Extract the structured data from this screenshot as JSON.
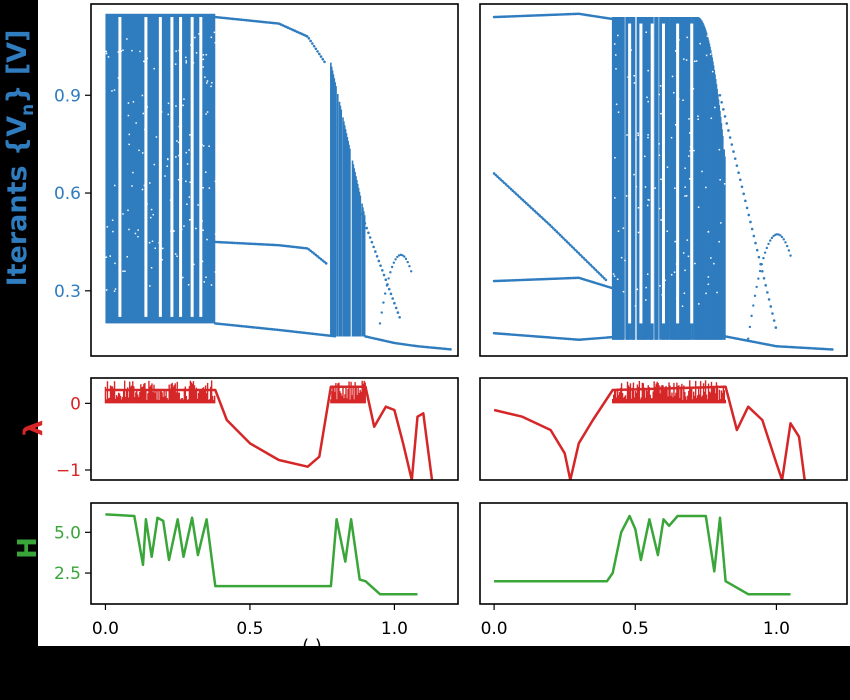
{
  "figure": {
    "colors": {
      "iterants": "#2f7cbf",
      "lyapunov": "#d62728",
      "entropy": "#3aa63a",
      "frame": "#000000",
      "panel_bg": "#ffffff",
      "page_bg": "#000000"
    },
    "ylabels": {
      "iterants_prefix": "Iterants {V",
      "iterants_sub": "n",
      "iterants_suffix": "} [V]",
      "lyapunov": "λ",
      "entropy": "H"
    },
    "xlabel_fragment": "(.)"
  },
  "chart_data": [
    {
      "id": "bifurcation-left",
      "type": "scatter",
      "series": [
        {
          "values": "bifurcation iterates"
        }
      ],
      "xlim": [
        -0.05,
        1.22
      ],
      "ylim": [
        0.1,
        1.18
      ],
      "yticks": [
        0.3,
        0.6,
        0.9
      ],
      "ytick_labels": [
        "0.3",
        "0.6",
        "0.9"
      ],
      "chaos_band": [
        0.0,
        0.38
      ],
      "chaos_band_2": [
        0.78,
        0.9
      ],
      "windows": [
        0.05,
        0.14,
        0.19,
        0.23,
        0.26,
        0.3,
        0.33
      ],
      "branch_upper": [
        [
          0.38,
          1.14
        ],
        [
          0.6,
          1.12
        ],
        [
          0.7,
          1.08
        ],
        [
          0.76,
          1.0
        ]
      ],
      "branch_mid": [
        [
          0.38,
          0.45
        ],
        [
          0.6,
          0.44
        ],
        [
          0.7,
          0.43
        ],
        [
          0.77,
          0.38
        ]
      ],
      "branch_low": [
        [
          0.0,
          0.21
        ],
        [
          0.38,
          0.2
        ],
        [
          0.6,
          0.18
        ],
        [
          0.8,
          0.16
        ]
      ],
      "tail": [
        [
          0.9,
          0.16
        ],
        [
          1.0,
          0.14
        ],
        [
          1.08,
          0.13
        ],
        [
          1.2,
          0.12
        ]
      ]
    },
    {
      "id": "bifurcation-right",
      "type": "scatter",
      "series": [
        {
          "values": "bifurcation iterates"
        }
      ],
      "xlim": [
        -0.05,
        1.25
      ],
      "ylim": [
        0.1,
        1.18
      ],
      "chaos_band": [
        0.42,
        0.82
      ],
      "windows": [
        0.48,
        0.52,
        0.56,
        0.6,
        0.65,
        0.7
      ],
      "upper_start": [
        [
          0.0,
          1.14
        ],
        [
          0.3,
          1.15
        ],
        [
          0.45,
          1.13
        ]
      ],
      "diagonal": [
        [
          0.0,
          0.66
        ],
        [
          0.2,
          0.5
        ],
        [
          0.4,
          0.33
        ]
      ],
      "branch_low": [
        [
          0.0,
          0.17
        ],
        [
          0.3,
          0.15
        ],
        [
          0.45,
          0.16
        ]
      ],
      "tail": [
        [
          0.82,
          0.16
        ],
        [
          1.0,
          0.13
        ],
        [
          1.2,
          0.12
        ]
      ]
    },
    {
      "id": "lyapunov-left",
      "type": "line",
      "xlim": [
        -0.05,
        1.22
      ],
      "ylim": [
        -1.15,
        0.38
      ],
      "yticks": [
        0,
        -1
      ],
      "ytick_labels": [
        "0",
        "−1"
      ],
      "x": [
        0.0,
        0.38,
        0.42,
        0.5,
        0.6,
        0.7,
        0.74,
        0.78,
        0.9,
        0.93,
        0.97,
        1.0,
        1.03,
        1.06,
        1.08,
        1.1,
        1.13
      ],
      "y": [
        0.2,
        0.2,
        -0.25,
        -0.6,
        -0.85,
        -0.95,
        -0.8,
        0.25,
        0.25,
        -0.35,
        -0.05,
        -0.1,
        -0.6,
        -1.15,
        -0.2,
        -0.15,
        -1.15
      ]
    },
    {
      "id": "lyapunov-right",
      "type": "line",
      "xlim": [
        -0.05,
        1.25
      ],
      "ylim": [
        -1.15,
        0.38
      ],
      "x": [
        0.0,
        0.1,
        0.2,
        0.25,
        0.27,
        0.3,
        0.35,
        0.42,
        0.82,
        0.86,
        0.9,
        0.95,
        1.0,
        1.02,
        1.05,
        1.08,
        1.1
      ],
      "y": [
        -0.1,
        -0.2,
        -0.4,
        -0.75,
        -1.15,
        -0.6,
        -0.25,
        0.2,
        0.25,
        -0.4,
        -0.05,
        -0.25,
        -0.9,
        -1.15,
        -0.3,
        -0.5,
        -1.15
      ]
    },
    {
      "id": "entropy-left",
      "type": "line",
      "xlim": [
        -0.05,
        1.22
      ],
      "ylim": [
        0.6,
        6.8
      ],
      "yticks": [
        2.5,
        5.0
      ],
      "ytick_labels": [
        "2.5",
        "5.0"
      ],
      "xticks": [
        0.0,
        0.5,
        1.0
      ],
      "xtick_labels": [
        "0.0",
        "0.5",
        "1.0"
      ],
      "x": [
        0.0,
        0.1,
        0.12,
        0.13,
        0.14,
        0.16,
        0.18,
        0.2,
        0.22,
        0.25,
        0.27,
        0.3,
        0.32,
        0.35,
        0.38,
        0.5,
        0.6,
        0.7,
        0.78,
        0.8,
        0.83,
        0.85,
        0.88,
        0.9,
        0.95,
        1.0,
        1.08
      ],
      "y": [
        6.1,
        6.0,
        4.0,
        3.0,
        5.8,
        3.5,
        5.9,
        5.7,
        3.3,
        5.8,
        3.5,
        5.9,
        3.6,
        5.8,
        1.7,
        1.7,
        1.7,
        1.7,
        1.7,
        5.8,
        3.2,
        5.8,
        2.1,
        2.0,
        1.2,
        1.2,
        1.2
      ]
    },
    {
      "id": "entropy-right",
      "type": "line",
      "xlim": [
        -0.05,
        1.25
      ],
      "ylim": [
        0.6,
        6.8
      ],
      "xticks": [
        0.0,
        0.5,
        1.0
      ],
      "xtick_labels": [
        "0.0",
        "0.5",
        "1.0"
      ],
      "x": [
        0.0,
        0.2,
        0.4,
        0.42,
        0.45,
        0.48,
        0.5,
        0.52,
        0.55,
        0.58,
        0.6,
        0.62,
        0.65,
        0.7,
        0.75,
        0.78,
        0.8,
        0.82,
        0.9,
        1.0,
        1.05
      ],
      "y": [
        2.0,
        2.0,
        2.0,
        2.5,
        5.0,
        6.0,
        5.2,
        3.3,
        5.8,
        3.6,
        5.8,
        5.4,
        6.0,
        6.0,
        6.0,
        2.6,
        5.9,
        2.0,
        1.2,
        1.2,
        1.2
      ]
    }
  ]
}
